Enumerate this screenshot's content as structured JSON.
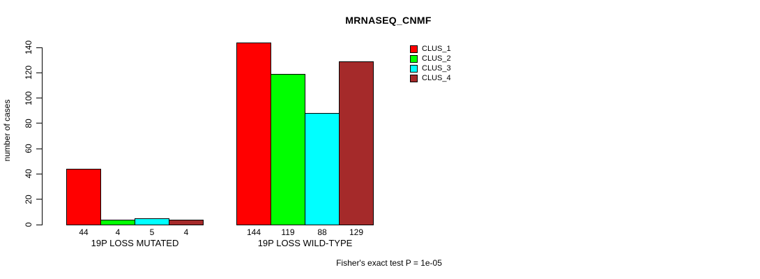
{
  "chart_data": {
    "type": "bar",
    "title": "MRNASEQ_CNMF",
    "ylabel": "number of cases",
    "xlabel": "",
    "ylim": [
      0,
      140
    ],
    "yticks": [
      0,
      20,
      40,
      60,
      80,
      100,
      120,
      140
    ],
    "categories": [
      "19P LOSS MUTATED",
      "19P LOSS WILD-TYPE"
    ],
    "series": [
      {
        "name": "CLUS_1",
        "color": "#ff0000",
        "values": [
          44,
          144
        ]
      },
      {
        "name": "CLUS_2",
        "color": "#00ff00",
        "values": [
          4,
          119
        ]
      },
      {
        "name": "CLUS_3",
        "color": "#00ffff",
        "values": [
          5,
          88
        ]
      },
      {
        "name": "CLUS_4",
        "color": "#a52a2a",
        "values": [
          4,
          129
        ]
      }
    ],
    "bar_value_labels": [
      [
        44,
        4,
        5,
        4
      ],
      [
        144,
        119,
        88,
        129
      ]
    ],
    "legend_position": "top-right",
    "grid": false,
    "annotation": "Fisher's exact test P = 1e-05",
    "axis_color": "#000000",
    "background": "#ffffff"
  }
}
